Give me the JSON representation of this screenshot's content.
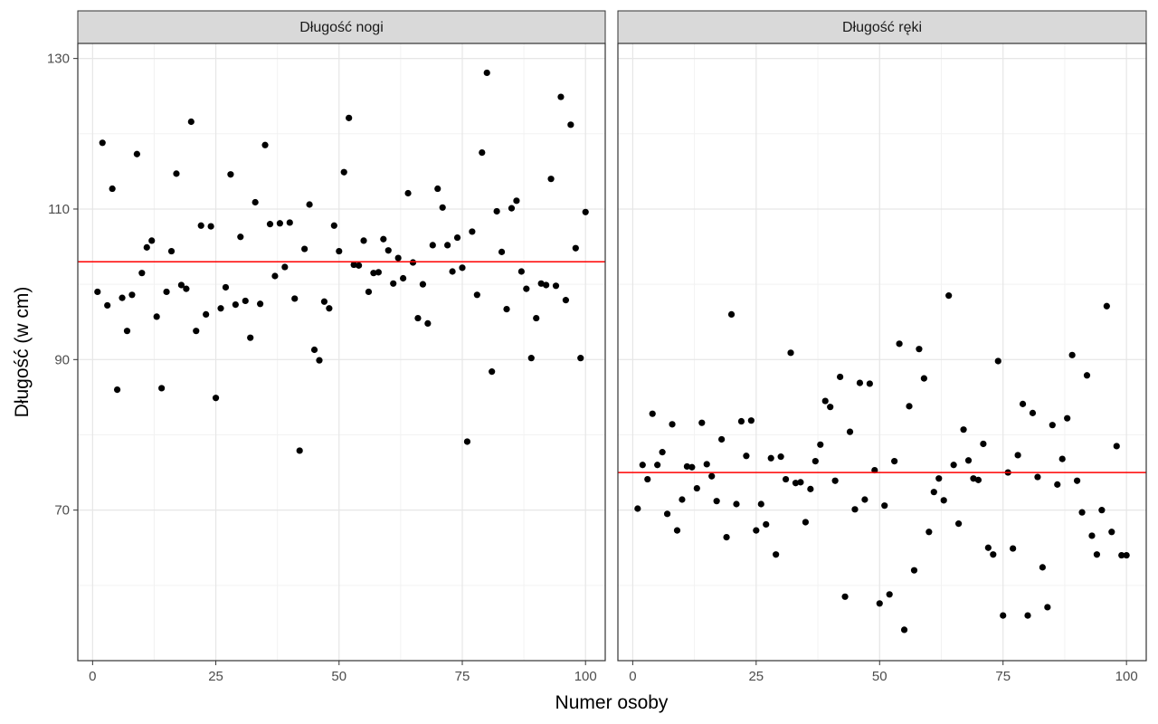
{
  "chart_data": {
    "type": "scatter",
    "xlabel": "Numer osoby",
    "ylabel": "Długość (w cm)",
    "xlim": [
      -3,
      104
    ],
    "ylim": [
      50,
      132
    ],
    "x_ticks": [
      0,
      25,
      50,
      75,
      100
    ],
    "y_ticks": [
      70,
      90,
      110,
      130
    ],
    "x_tick_labels": [
      "0",
      "25",
      "50",
      "75",
      "100"
    ],
    "y_tick_labels": [
      "70",
      "90",
      "110",
      "130"
    ],
    "grid": true,
    "point_color": "#000000",
    "mean_line_color": "#ff0000",
    "panels": [
      {
        "title": "Długość nogi",
        "mean": 103,
        "x": [
          1,
          2,
          3,
          4,
          5,
          6,
          7,
          8,
          9,
          10,
          11,
          12,
          13,
          14,
          15,
          16,
          17,
          18,
          19,
          20,
          21,
          22,
          23,
          24,
          25,
          26,
          27,
          28,
          29,
          30,
          31,
          32,
          33,
          34,
          35,
          36,
          37,
          38,
          39,
          40,
          41,
          42,
          43,
          44,
          45,
          46,
          47,
          48,
          49,
          50,
          51,
          52,
          53,
          54,
          55,
          56,
          57,
          58,
          59,
          60,
          61,
          62,
          63,
          64,
          65,
          66,
          67,
          68,
          69,
          70,
          71,
          72,
          73,
          74,
          75,
          76,
          77,
          78,
          79,
          80,
          81,
          82,
          83,
          84,
          85,
          86,
          87,
          88,
          89,
          90,
          91,
          92,
          93,
          94,
          95,
          96,
          97,
          98,
          99,
          100
        ],
        "y": [
          99,
          118.8,
          97.2,
          112.7,
          86,
          98.2,
          93.8,
          98.6,
          117.3,
          101.5,
          104.9,
          105.8,
          95.7,
          86.2,
          99,
          104.4,
          114.7,
          99.9,
          99.4,
          121.6,
          93.8,
          107.8,
          96,
          107.7,
          84.9,
          96.8,
          99.6,
          114.6,
          97.3,
          106.3,
          97.8,
          92.9,
          110.9,
          97.4,
          118.5,
          108,
          101.1,
          108.1,
          102.3,
          108.2,
          98.1,
          77.9,
          104.7,
          110.6,
          91.3,
          89.9,
          97.7,
          96.8,
          107.8,
          104.4,
          114.9,
          122.1,
          102.6,
          102.5,
          105.8,
          99,
          101.5,
          101.6,
          106,
          104.5,
          100.1,
          103.5,
          100.8,
          112.1,
          102.9,
          95.5,
          100,
          94.8,
          105.2,
          112.7,
          110.2,
          105.2,
          101.7,
          106.2,
          102.2,
          79.1,
          107,
          98.6,
          117.5,
          128.1,
          88.4,
          109.7,
          104.3,
          96.7,
          110.1,
          111.1,
          101.7,
          99.4,
          90.2,
          95.5,
          100.1,
          99.9,
          114,
          99.8,
          124.9,
          97.9,
          121.2,
          104.8,
          90.2,
          109.6
        ]
      },
      {
        "title": "Długość ręki",
        "mean": 75,
        "x": [
          1,
          2,
          3,
          4,
          5,
          6,
          7,
          8,
          9,
          10,
          11,
          12,
          13,
          14,
          15,
          16,
          17,
          18,
          19,
          20,
          21,
          22,
          23,
          24,
          25,
          26,
          27,
          28,
          29,
          30,
          31,
          32,
          33,
          34,
          35,
          36,
          37,
          38,
          39,
          40,
          41,
          42,
          43,
          44,
          45,
          46,
          47,
          48,
          49,
          50,
          51,
          52,
          53,
          54,
          55,
          56,
          57,
          58,
          59,
          60,
          61,
          62,
          63,
          64,
          65,
          66,
          67,
          68,
          69,
          70,
          71,
          72,
          73,
          74,
          75,
          76,
          77,
          78,
          79,
          80,
          81,
          82,
          83,
          84,
          85,
          86,
          87,
          88,
          89,
          90,
          91,
          92,
          93,
          94,
          95,
          96,
          97,
          98,
          99,
          100
        ],
        "y": [
          70.2,
          76,
          74.1,
          82.8,
          76,
          77.7,
          69.5,
          81.4,
          67.3,
          71.4,
          75.8,
          75.7,
          72.9,
          81.6,
          76.1,
          74.5,
          71.2,
          79.4,
          66.4,
          96,
          70.8,
          81.8,
          77.2,
          81.9,
          67.3,
          70.8,
          68.1,
          76.9,
          64.1,
          77.1,
          74.1,
          90.9,
          73.6,
          73.7,
          68.4,
          72.8,
          76.5,
          78.7,
          84.5,
          83.7,
          73.9,
          87.7,
          58.5,
          80.4,
          70.1,
          86.9,
          71.4,
          86.8,
          75.3,
          57.6,
          70.6,
          58.8,
          76.5,
          92.1,
          54.1,
          83.8,
          62,
          91.4,
          87.5,
          67.1,
          72.4,
          74.2,
          71.3,
          98.5,
          76,
          68.2,
          80.7,
          76.6,
          74.2,
          74,
          78.8,
          65,
          64.1,
          89.8,
          56,
          75,
          64.9,
          77.3,
          84.1,
          56,
          82.9,
          74.4,
          62.4,
          57.1,
          81.3,
          73.4,
          76.8,
          82.2,
          90.6,
          73.9,
          69.7,
          87.9,
          66.6,
          64.1,
          70,
          97.1,
          67.1,
          78.5,
          64,
          64
        ]
      }
    ]
  }
}
